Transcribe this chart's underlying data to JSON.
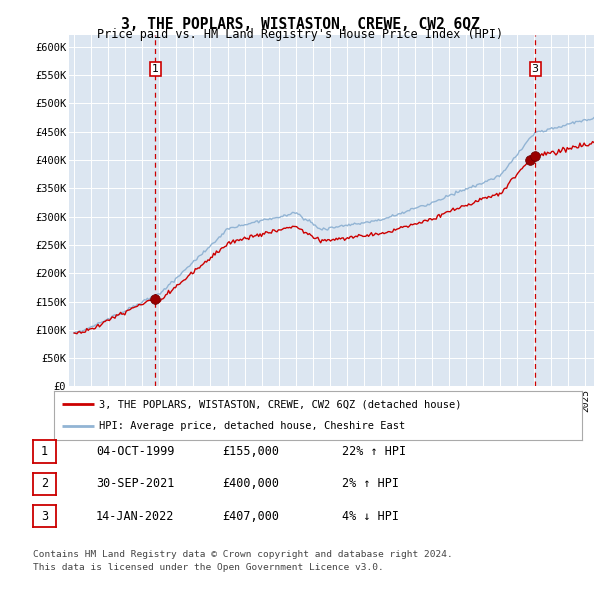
{
  "title": "3, THE POPLARS, WISTASTON, CREWE, CW2 6QZ",
  "subtitle": "Price paid vs. HM Land Registry's House Price Index (HPI)",
  "ylabel_ticks": [
    "£0",
    "£50K",
    "£100K",
    "£150K",
    "£200K",
    "£250K",
    "£300K",
    "£350K",
    "£400K",
    "£450K",
    "£500K",
    "£550K",
    "£600K"
  ],
  "ytick_values": [
    0,
    50000,
    100000,
    150000,
    200000,
    250000,
    300000,
    350000,
    400000,
    450000,
    500000,
    550000,
    600000
  ],
  "ylim": [
    0,
    620000
  ],
  "xlim_start": 1994.7,
  "xlim_end": 2025.5,
  "plot_bg_color": "#dce6f1",
  "figure_bg_color": "#ffffff",
  "red_line_color": "#cc0000",
  "blue_line_color": "#92b4d4",
  "vline_color": "#cc0000",
  "sale1_date": 1999.75,
  "sale1_price": 155000,
  "sale2_date": 2021.75,
  "sale2_price": 400000,
  "sale3_date": 2022.04,
  "sale3_price": 407000,
  "legend_label_red": "3, THE POPLARS, WISTASTON, CREWE, CW2 6QZ (detached house)",
  "legend_label_blue": "HPI: Average price, detached house, Cheshire East",
  "table_rows": [
    {
      "num": "1",
      "date": "04-OCT-1999",
      "price": "£155,000",
      "change": "22% ↑ HPI"
    },
    {
      "num": "2",
      "date": "30-SEP-2021",
      "price": "£400,000",
      "change": "2% ↑ HPI"
    },
    {
      "num": "3",
      "date": "14-JAN-2022",
      "price": "£407,000",
      "change": "4% ↓ HPI"
    }
  ],
  "footnote1": "Contains HM Land Registry data © Crown copyright and database right 2024.",
  "footnote2": "This data is licensed under the Open Government Licence v3.0."
}
